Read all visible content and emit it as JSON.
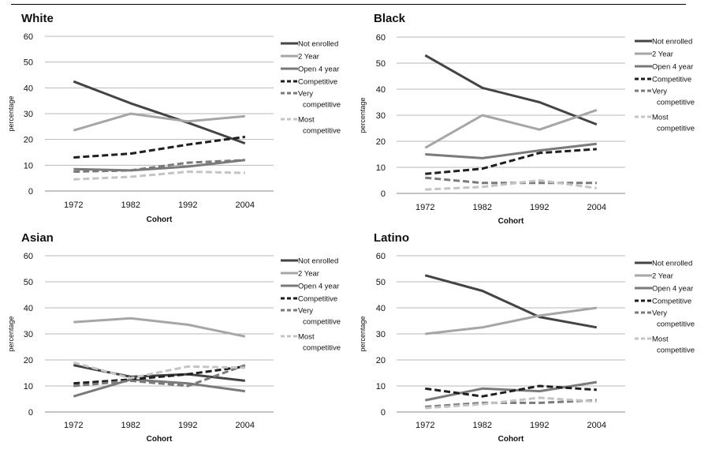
{
  "chart_data": [
    {
      "type": "line",
      "title": "White",
      "xlabel": "Cohort",
      "ylabel": "percentage",
      "categories": [
        "1972",
        "1982",
        "1992",
        "2004"
      ],
      "ylim": [
        0,
        60
      ],
      "yticks": [
        0,
        10,
        20,
        30,
        40,
        50,
        60
      ],
      "grid": true,
      "legend_position": "right",
      "series": [
        {
          "name": "Not enrolled",
          "values": [
            42.5,
            34,
            26.5,
            18.5
          ],
          "color": "#444444",
          "style": "solid"
        },
        {
          "name": "2 Year",
          "values": [
            23.5,
            30,
            27,
            29
          ],
          "color": "#a6a6a6",
          "style": "solid"
        },
        {
          "name": "Open 4 year",
          "values": [
            8.5,
            8,
            9.5,
            12
          ],
          "color": "#7a7a7a",
          "style": "solid"
        },
        {
          "name": "Competitive",
          "values": [
            13,
            14.5,
            18,
            21
          ],
          "color": "#1f1f1f",
          "style": "dashed"
        },
        {
          "name": [
            "Very",
            "competitive"
          ],
          "values": [
            7.5,
            8,
            11,
            12
          ],
          "color": "#7a7a7a",
          "style": "dashed"
        },
        {
          "name": [
            "Most",
            "competitive"
          ],
          "values": [
            4.5,
            5.5,
            7.5,
            7
          ],
          "color": "#c4c4c4",
          "style": "dashed"
        }
      ]
    },
    {
      "type": "line",
      "title": "Black",
      "xlabel": "Cohort",
      "ylabel": "percentage",
      "categories": [
        "1972",
        "1982",
        "1992",
        "2004"
      ],
      "ylim": [
        0,
        60
      ],
      "yticks": [
        0,
        10,
        20,
        30,
        40,
        50,
        60
      ],
      "grid": true,
      "legend_position": "right",
      "series": [
        {
          "name": "Not enrolled",
          "values": [
            53,
            40.5,
            35,
            26.5
          ],
          "color": "#444444",
          "style": "solid"
        },
        {
          "name": "2 Year",
          "values": [
            17.5,
            30,
            24.5,
            32
          ],
          "color": "#a6a6a6",
          "style": "solid"
        },
        {
          "name": "Open 4 year",
          "values": [
            15,
            13.5,
            16.5,
            19
          ],
          "color": "#7a7a7a",
          "style": "solid"
        },
        {
          "name": "Competitive",
          "values": [
            7.5,
            9.5,
            15.5,
            17
          ],
          "color": "#1f1f1f",
          "style": "dashed"
        },
        {
          "name": [
            "Very",
            "competitive"
          ],
          "values": [
            6,
            4,
            4,
            4
          ],
          "color": "#7a7a7a",
          "style": "dashed"
        },
        {
          "name": [
            "Most",
            "competitive"
          ],
          "values": [
            1.5,
            2.5,
            5,
            2
          ],
          "color": "#c4c4c4",
          "style": "dashed"
        }
      ]
    },
    {
      "type": "line",
      "title": "Asian",
      "xlabel": "Cohort",
      "ylabel": "percentage",
      "categories": [
        "1972",
        "1982",
        "1992",
        "2004"
      ],
      "ylim": [
        0,
        60
      ],
      "yticks": [
        0,
        10,
        20,
        30,
        40,
        50,
        60
      ],
      "grid": true,
      "legend_position": "right",
      "series": [
        {
          "name": "Not enrolled",
          "values": [
            18,
            13.5,
            14.5,
            12
          ],
          "color": "#444444",
          "style": "solid"
        },
        {
          "name": "2 Year",
          "values": [
            34.5,
            36,
            33.5,
            29
          ],
          "color": "#a6a6a6",
          "style": "solid"
        },
        {
          "name": "Open 4 year",
          "values": [
            6,
            12.5,
            11,
            8
          ],
          "color": "#7a7a7a",
          "style": "solid"
        },
        {
          "name": "Competitive",
          "values": [
            11,
            12.5,
            14.5,
            17.5
          ],
          "color": "#1f1f1f",
          "style": "dashed"
        },
        {
          "name": [
            "Very",
            "competitive"
          ],
          "values": [
            10,
            12,
            10,
            18
          ],
          "color": "#7a7a7a",
          "style": "dashed"
        },
        {
          "name": [
            "Most",
            "competitive"
          ],
          "values": [
            19,
            13,
            17.5,
            17
          ],
          "color": "#c4c4c4",
          "style": "dashed"
        }
      ]
    },
    {
      "type": "line",
      "title": "Latino",
      "xlabel": "Cohort",
      "ylabel": "percentage",
      "categories": [
        "1972",
        "1982",
        "1992",
        "2004"
      ],
      "ylim": [
        0,
        60
      ],
      "yticks": [
        0,
        10,
        20,
        30,
        40,
        50,
        60
      ],
      "grid": true,
      "legend_position": "right",
      "series": [
        {
          "name": "Not enrolled",
          "values": [
            52.5,
            46.5,
            36.5,
            32.5
          ],
          "color": "#444444",
          "style": "solid"
        },
        {
          "name": "2 Year",
          "values": [
            30,
            32.5,
            37,
            40
          ],
          "color": "#a6a6a6",
          "style": "solid"
        },
        {
          "name": "Open 4 year",
          "values": [
            4.5,
            9,
            8,
            11.5
          ],
          "color": "#7a7a7a",
          "style": "solid"
        },
        {
          "name": "Competitive",
          "values": [
            9,
            6,
            10,
            8.5
          ],
          "color": "#1f1f1f",
          "style": "dashed"
        },
        {
          "name": [
            "Very",
            "competitive"
          ],
          "values": [
            2,
            3.5,
            3.5,
            4.5
          ],
          "color": "#7a7a7a",
          "style": "dashed"
        },
        {
          "name": [
            "Most",
            "competitive"
          ],
          "values": [
            1.5,
            3,
            5.5,
            4
          ],
          "color": "#c4c4c4",
          "style": "dashed"
        }
      ]
    }
  ]
}
